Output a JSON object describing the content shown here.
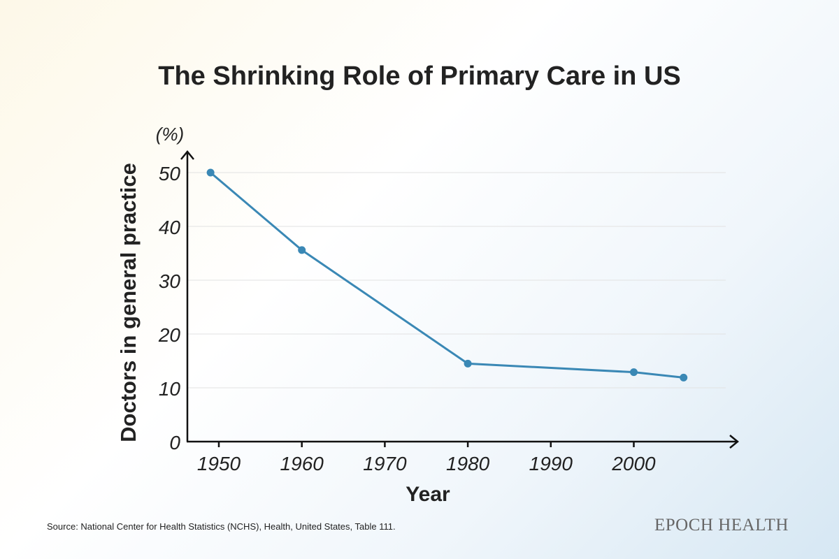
{
  "chart_data": {
    "type": "line",
    "title": "The Shrinking Role of Primary Care in US",
    "xlabel": "Year",
    "ylabel": "Doctors in general practice",
    "yunit": "(%)",
    "x_ticks": [
      "1950",
      "1960",
      "1970",
      "1980",
      "1990",
      "2000"
    ],
    "y_ticks": [
      "0",
      "10",
      "20",
      "30",
      "40",
      "50"
    ],
    "xlim": [
      1949,
      2011
    ],
    "ylim": [
      0,
      50
    ],
    "grid": "horizontal",
    "line_color": "#3a88b5",
    "x": [
      1949,
      1960,
      1980,
      2000,
      2006
    ],
    "values": [
      50,
      35.6,
      14.5,
      12.9,
      11.9
    ]
  },
  "source": "Source: National Center for Health Statistics (NCHS), Health, United States, Table 111.",
  "logo": "EPOCH HEALTH"
}
